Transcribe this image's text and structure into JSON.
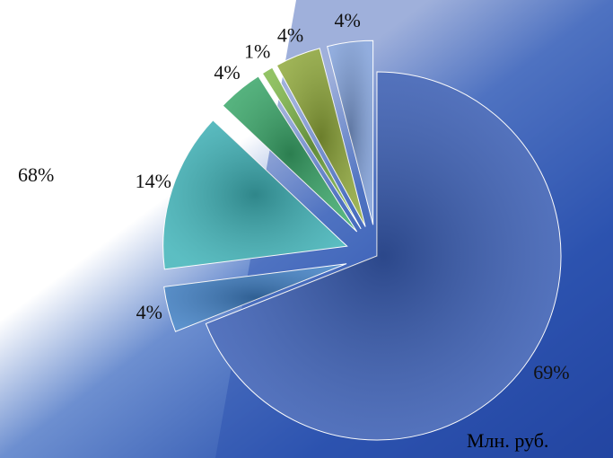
{
  "chart_data": {
    "type": "pie",
    "values": [
      69,
      4,
      14,
      4,
      1,
      4,
      4
    ],
    "value_labels": [
      "69%",
      "4%",
      "14%",
      "4%",
      "1%",
      "4%",
      "4%"
    ],
    "colors": [
      "#3a5fb8",
      "#3f7fc4",
      "#3fb3b8",
      "#3aa86a",
      "#7fb84a",
      "#8fa83a",
      "#7f9fd8"
    ],
    "annotations": [
      "68%",
      "Млн. руб."
    ]
  }
}
